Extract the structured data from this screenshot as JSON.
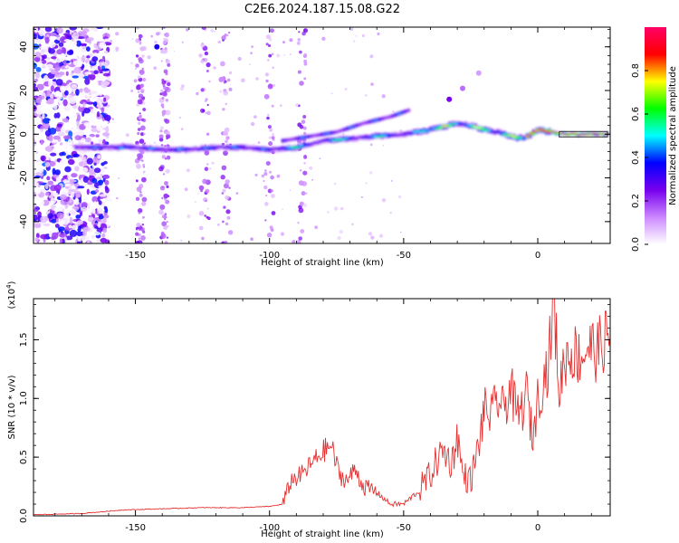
{
  "title": "C2E6.2024.187.15.08.G22",
  "chart_data": [
    {
      "type": "heatmap",
      "xlabel": "Height of straight line (km)",
      "ylabel": "Frequency (Hz)",
      "xlim": [
        -188,
        27
      ],
      "ylim": [
        -50,
        49
      ],
      "x_ticks": [
        -150,
        -100,
        -50,
        0
      ],
      "y_ticks": [
        -40,
        -20,
        0,
        20,
        40
      ],
      "x_tick_labels": [
        "-150",
        "-100",
        "-50",
        "0"
      ],
      "y_tick_labels": [
        "-40",
        "-20",
        "0",
        "20",
        "40"
      ],
      "colorbar": {
        "label": "Normalized spectral amplitude",
        "range": [
          0,
          1
        ],
        "ticks": [
          0.0,
          0.2,
          0.4,
          0.6,
          0.8
        ],
        "tick_labels": [
          "0.0",
          "0.2",
          "0.4",
          "0.6",
          "0.8"
        ],
        "colors": [
          "#ffffff",
          "#cc88ff",
          "#7700ee",
          "#0000ff",
          "#00ffff",
          "#00ff00",
          "#ffff00",
          "#ff0000",
          "#ff0066"
        ]
      },
      "ridge": {
        "x": [
          -170,
          -160,
          -150,
          -140,
          -130,
          -120,
          -110,
          -100,
          -90,
          -80,
          -70,
          -60,
          -50,
          -40,
          -30,
          -25,
          -20,
          -15,
          -10,
          -5,
          0,
          5,
          10,
          20,
          27
        ],
        "y": [
          -6,
          -6,
          -6,
          -7,
          -7,
          -6,
          -6,
          -7,
          -6,
          -3,
          -2,
          -1,
          0,
          2,
          5,
          4,
          2,
          1,
          -1,
          -2,
          2,
          1,
          0,
          0,
          0
        ]
      },
      "branch": {
        "x": [
          -95,
          -85,
          -75,
          -65,
          -55,
          -48
        ],
        "y": [
          -3,
          -1,
          1,
          5,
          8,
          11
        ]
      }
    },
    {
      "type": "line",
      "xlabel": "Height of straight line (km)",
      "ylabel": "SNR (10 * v/v)",
      "y_multiplier": "(x10^4)",
      "xlim": [
        -188,
        27
      ],
      "ylim": [
        0,
        1.85
      ],
      "x_ticks": [
        -150,
        -100,
        -50,
        0
      ],
      "y_ticks": [
        0.0,
        0.5,
        1.0,
        1.5
      ],
      "x_tick_labels": [
        "-150",
        "-100",
        "-50",
        "0"
      ],
      "y_tick_labels": [
        "0.0",
        "0.5",
        "1.0",
        "1.5"
      ],
      "line_color": "#e53030",
      "series": [
        {
          "x": [
            -188,
            -170,
            -155,
            -140,
            -125,
            -110,
            -100,
            -95,
            -92,
            -88,
            -84,
            -80,
            -77,
            -74,
            -71,
            -68,
            -65,
            -60,
            -55,
            -50,
            -45,
            -40,
            -37,
            -35,
            -32,
            -30,
            -28,
            -25,
            -22,
            -20,
            -17,
            -15,
            -13,
            -10,
            -8,
            -6,
            -4,
            -2,
            0,
            2,
            4,
            6,
            8,
            10,
            13,
            16,
            19,
            22,
            25,
            27
          ],
          "y": [
            0.01,
            0.02,
            0.05,
            0.06,
            0.07,
            0.07,
            0.08,
            0.1,
            0.3,
            0.35,
            0.45,
            0.55,
            0.6,
            0.35,
            0.3,
            0.4,
            0.25,
            0.2,
            0.1,
            0.1,
            0.2,
            0.35,
            0.5,
            0.55,
            0.45,
            0.7,
            0.35,
            0.3,
            0.6,
            0.9,
            0.85,
            1.0,
            0.9,
            1.1,
            0.85,
            0.9,
            1.05,
            0.65,
            1.0,
            1.15,
            1.3,
            1.85,
            1.05,
            1.35,
            1.4,
            1.35,
            1.45,
            1.4,
            1.5,
            1.5
          ]
        }
      ]
    }
  ]
}
